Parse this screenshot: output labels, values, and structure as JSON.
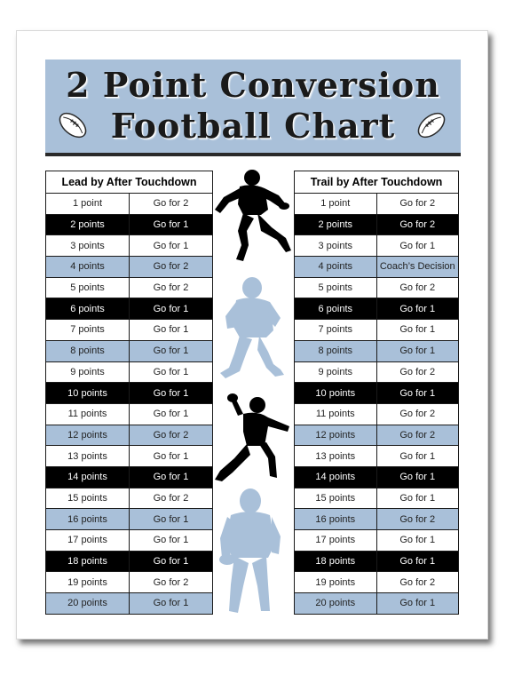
{
  "title": {
    "line1": "2 Point Conversion",
    "line2": "Football Chart"
  },
  "colors": {
    "banner": "#a9c0d9",
    "row_blue": "#a9c0d9",
    "row_black": "#000000",
    "silhouette_black": "#000000",
    "silhouette_blue": "#a9c0d9"
  },
  "icons": [
    "football-icon",
    "player-silhouette"
  ],
  "lead_table": {
    "header": "Lead by After Touchdown",
    "rows": [
      {
        "points": "1 point",
        "action": "Go for 2"
      },
      {
        "points": "2 points",
        "action": "Go for 1"
      },
      {
        "points": "3 points",
        "action": "Go for 1"
      },
      {
        "points": "4 points",
        "action": "Go for 2"
      },
      {
        "points": "5 points",
        "action": "Go for 2"
      },
      {
        "points": "6 points",
        "action": "Go for 1"
      },
      {
        "points": "7 points",
        "action": "Go for 1"
      },
      {
        "points": "8 points",
        "action": "Go for 1"
      },
      {
        "points": "9 points",
        "action": "Go for 1"
      },
      {
        "points": "10 points",
        "action": "Go for 1"
      },
      {
        "points": "11 points",
        "action": "Go for 1"
      },
      {
        "points": "12 points",
        "action": "Go for 2"
      },
      {
        "points": "13 points",
        "action": "Go for 1"
      },
      {
        "points": "14 points",
        "action": "Go for 1"
      },
      {
        "points": "15 points",
        "action": "Go for 2"
      },
      {
        "points": "16 points",
        "action": "Go for 1"
      },
      {
        "points": "17 points",
        "action": "Go for 1"
      },
      {
        "points": "18 points",
        "action": "Go for 1"
      },
      {
        "points": "19 points",
        "action": "Go for 2"
      },
      {
        "points": "20 points",
        "action": "Go for 1"
      }
    ]
  },
  "trail_table": {
    "header": "Trail by After Touchdown",
    "rows": [
      {
        "points": "1 point",
        "action": "Go for 2"
      },
      {
        "points": "2 points",
        "action": "Go for 2"
      },
      {
        "points": "3 points",
        "action": "Go for 1"
      },
      {
        "points": "4 points",
        "action": "Coach’s Decision"
      },
      {
        "points": "5 points",
        "action": "Go for 2"
      },
      {
        "points": "6 points",
        "action": "Go for 1"
      },
      {
        "points": "7 points",
        "action": "Go for 1"
      },
      {
        "points": "8 points",
        "action": "Go for 1"
      },
      {
        "points": "9 points",
        "action": "Go for 2"
      },
      {
        "points": "10 points",
        "action": "Go for 1"
      },
      {
        "points": "11 points",
        "action": "Go for 2"
      },
      {
        "points": "12 points",
        "action": "Go for 2"
      },
      {
        "points": "13 points",
        "action": "Go for 1"
      },
      {
        "points": "14 points",
        "action": "Go for 1"
      },
      {
        "points": "15 points",
        "action": "Go for 1"
      },
      {
        "points": "16 points",
        "action": "Go for 2"
      },
      {
        "points": "17 points",
        "action": "Go for 1"
      },
      {
        "points": "18 points",
        "action": "Go for 1"
      },
      {
        "points": "19 points",
        "action": "Go for 2"
      },
      {
        "points": "20 points",
        "action": "Go for 1"
      }
    ]
  }
}
